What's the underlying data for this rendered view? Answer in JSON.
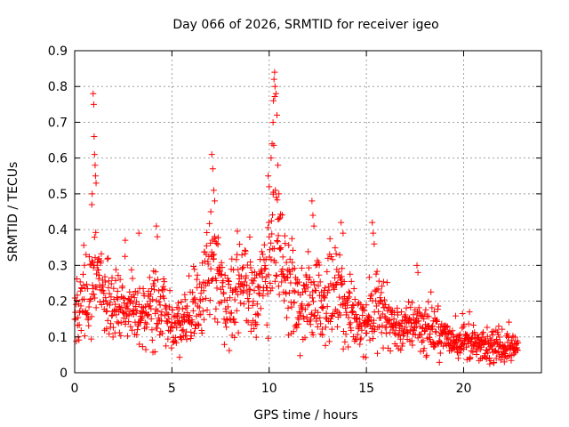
{
  "chart_data": {
    "type": "scatter",
    "title": "Day 066 of 2026, SRMTID for receiver igeo",
    "xlabel": "GPS time / hours",
    "ylabel": "SRMTID / TECUs",
    "xlim": [
      0,
      24
    ],
    "ylim": [
      0,
      0.9
    ],
    "xticks": [
      0,
      5,
      10,
      15,
      20
    ],
    "xtick_labels": [
      "0",
      "5",
      "10",
      "15",
      "20"
    ],
    "yticks": [
      0,
      0.1,
      0.2,
      0.3,
      0.4,
      0.5,
      0.6,
      0.7,
      0.8,
      0.9
    ],
    "ytick_labels": [
      "0",
      "0.1",
      "0.2",
      "0.3",
      "0.4",
      "0.5",
      "0.6",
      "0.7",
      "0.8",
      "0.9"
    ],
    "grid": true,
    "marker": "+",
    "marker_color": "#ff0000",
    "series": [
      {
        "name": "SRMTID",
        "x_range": [
          0.0,
          22.8
        ],
        "sample_step_hours": 0.0167,
        "random_seed": 66,
        "baseline": [
          [
            0.0,
            0.15
          ],
          [
            0.5,
            0.22
          ],
          [
            1.0,
            0.26
          ],
          [
            1.5,
            0.2
          ],
          [
            2.0,
            0.17
          ],
          [
            2.5,
            0.21
          ],
          [
            3.0,
            0.16
          ],
          [
            3.5,
            0.15
          ],
          [
            4.0,
            0.18
          ],
          [
            4.5,
            0.19
          ],
          [
            5.0,
            0.13
          ],
          [
            5.5,
            0.14
          ],
          [
            6.0,
            0.17
          ],
          [
            6.5,
            0.2
          ],
          [
            7.0,
            0.28
          ],
          [
            7.3,
            0.32
          ],
          [
            7.6,
            0.22
          ],
          [
            8.0,
            0.2
          ],
          [
            8.5,
            0.25
          ],
          [
            9.0,
            0.24
          ],
          [
            9.5,
            0.2
          ],
          [
            10.0,
            0.33
          ],
          [
            10.3,
            0.38
          ],
          [
            10.6,
            0.3
          ],
          [
            11.0,
            0.24
          ],
          [
            11.5,
            0.18
          ],
          [
            12.0,
            0.2
          ],
          [
            12.5,
            0.22
          ],
          [
            13.0,
            0.19
          ],
          [
            13.5,
            0.22
          ],
          [
            14.0,
            0.17
          ],
          [
            14.5,
            0.15
          ],
          [
            15.0,
            0.14
          ],
          [
            15.5,
            0.18
          ],
          [
            16.0,
            0.16
          ],
          [
            16.5,
            0.13
          ],
          [
            17.0,
            0.12
          ],
          [
            17.5,
            0.15
          ],
          [
            18.0,
            0.12
          ],
          [
            18.5,
            0.12
          ],
          [
            19.0,
            0.1
          ],
          [
            19.5,
            0.09
          ],
          [
            20.0,
            0.09
          ],
          [
            20.5,
            0.08
          ],
          [
            21.0,
            0.07
          ],
          [
            21.5,
            0.07
          ],
          [
            22.0,
            0.07
          ],
          [
            22.5,
            0.07
          ],
          [
            22.8,
            0.07
          ]
        ],
        "spikes": [
          {
            "x": 0.95,
            "y": 0.78
          },
          {
            "x": 0.98,
            "y": 0.75
          },
          {
            "x": 1.0,
            "y": 0.66
          },
          {
            "x": 1.02,
            "y": 0.61
          },
          {
            "x": 1.05,
            "y": 0.58
          },
          {
            "x": 1.07,
            "y": 0.55
          },
          {
            "x": 1.1,
            "y": 0.53
          },
          {
            "x": 0.9,
            "y": 0.5
          },
          {
            "x": 0.88,
            "y": 0.47
          },
          {
            "x": 7.05,
            "y": 0.61
          },
          {
            "x": 7.1,
            "y": 0.57
          },
          {
            "x": 7.15,
            "y": 0.51
          },
          {
            "x": 7.2,
            "y": 0.48
          },
          {
            "x": 7.0,
            "y": 0.45
          },
          {
            "x": 9.95,
            "y": 0.55
          },
          {
            "x": 10.0,
            "y": 0.52
          },
          {
            "x": 10.1,
            "y": 0.6
          },
          {
            "x": 10.15,
            "y": 0.64
          },
          {
            "x": 10.2,
            "y": 0.7
          },
          {
            "x": 10.22,
            "y": 0.76
          },
          {
            "x": 10.25,
            "y": 0.82
          },
          {
            "x": 10.28,
            "y": 0.84
          },
          {
            "x": 10.3,
            "y": 0.8
          },
          {
            "x": 10.35,
            "y": 0.78
          },
          {
            "x": 10.4,
            "y": 0.72
          },
          {
            "x": 10.45,
            "y": 0.58
          },
          {
            "x": 10.5,
            "y": 0.5
          },
          {
            "x": 12.2,
            "y": 0.48
          },
          {
            "x": 12.25,
            "y": 0.44
          },
          {
            "x": 12.3,
            "y": 0.41
          },
          {
            "x": 13.7,
            "y": 0.42
          },
          {
            "x": 13.8,
            "y": 0.39
          },
          {
            "x": 15.3,
            "y": 0.42
          },
          {
            "x": 15.35,
            "y": 0.39
          },
          {
            "x": 15.4,
            "y": 0.36
          },
          {
            "x": 4.2,
            "y": 0.41
          },
          {
            "x": 4.25,
            "y": 0.38
          },
          {
            "x": 3.3,
            "y": 0.39
          },
          {
            "x": 2.6,
            "y": 0.37
          },
          {
            "x": 17.6,
            "y": 0.3
          },
          {
            "x": 17.65,
            "y": 0.28
          },
          {
            "x": 20.3,
            "y": 0.17
          },
          {
            "x": 21.8,
            "y": 0.13
          }
        ]
      }
    ]
  }
}
